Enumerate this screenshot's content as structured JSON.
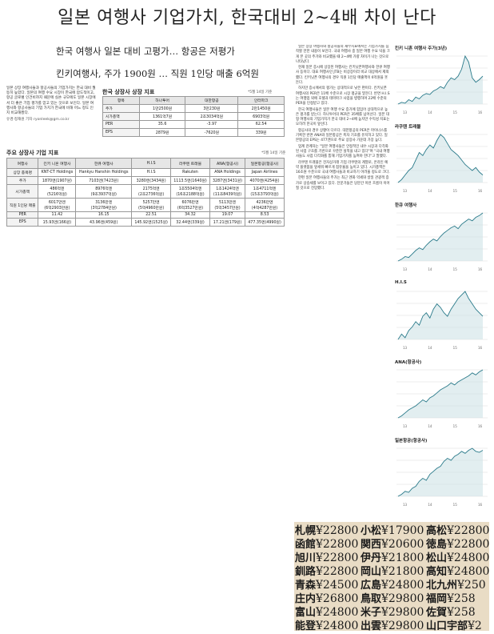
{
  "headline": "일본 여행사 기업가치, 한국대비 2~4배 차이 난다",
  "subheads": [
    "한국 여행사 일본 대비 고평가… 항공은 저평가",
    "킨키여행사, 주가 1900원 … 직원 1인당 매출 6억원"
  ],
  "intro": {
    "text": "일본 상장 여행사들과 항공사들의 기업가치는 한국 대비 월등히 높았다. 일본의 여행 수요 시장이 한국에 압도적이고, 항공 글로벌 인건비까지 때문에 실손 규모에도 일본 시장에서 더 좋은 기업 평가를 얻고 있는 것으로 보인다. 일본 여행사와 항공사들의 기업 가치가 한국에 비해 어느 정도 인지 비교해봤다.",
    "byline": "유경·정재원 기자 ryonleek@gm.co.kr"
  },
  "table1": {
    "title": "한국 상장사 상장 지표",
    "note": "*5월 14일 기준",
    "headers": [
      "항목",
      "하나투어",
      "대한항공",
      "인터파크"
    ],
    "rows": [
      [
        "주가",
        "1만2500원",
        "3만230원",
        "2만1450원"
      ],
      [
        "시가총액",
        "1361억7원",
        "2조3034억원",
        "6903억원"
      ],
      [
        "PER",
        "35.6",
        "-3.97",
        "62.54"
      ],
      [
        "EPS",
        "2879원",
        "-7620원",
        "339원"
      ]
    ]
  },
  "table2": {
    "title": "주요 상장사 기업 지표",
    "note": "*5월 14일 기준",
    "headers": [
      "여행사",
      "킨키 니혼 여행사",
      "한큐 여행사",
      "H.I.S",
      "라쿠텐 트래블",
      "ANA(항공사)",
      "일본항공(항공사)"
    ],
    "rows": [
      {
        "label": "상장 종목명",
        "cells": [
          "KNT-CT Holdings",
          "Hankyu Hanshin Holdings",
          "H.I.S",
          "Rakuten",
          "ANA Holdings",
          "Japan Airlines"
        ]
      },
      {
        "label": "주가",
        "cells": [
          "1870엔(1907원)",
          "7103엔(7423원)",
          "3280엔(3434원)",
          "1113.5엔(1640원)",
          "3287엔(3431원)",
          "4070엔(4254원)"
        ]
      },
      {
        "label": "시가총액",
        "cells": [
          "486억엔\n(5216억원)",
          "8976억엔\n(9조3937억원)",
          "2175억엔\n(2조2736억원)",
          "1조5504억엔\n(16조2188억원)",
          "1조1424억엔\n(11조8439억원)",
          "1조4711억엔\n(15조3793억원)"
        ]
      },
      {
        "label": "직원 1인당 매출",
        "cells": [
          "6017만엔\n(6억2903만원)",
          "3136만엔\n(3억2784만원)",
          "5257만엔\n(5억4960만원)",
          "6076만엔\n(6억3527만원)",
          "5113만엔\n(5억3457만원)",
          "4236만엔\n(4억4287만원)"
        ]
      },
      {
        "label": "PER",
        "cells": [
          "11.42",
          "16.15",
          "22.51",
          "34.32",
          "19.07",
          "8.53"
        ]
      },
      {
        "label": "EPS",
        "cells": [
          "15.93엔(166원)",
          "43.96엔(459원)",
          "145.92엔(1525원)",
          "32.44엔(339원)",
          "17.21엔(179원)",
          "477.35엔(4990원)"
        ]
      }
    ]
  },
  "article": [
    "일본 상장 여행사와 항공사들의 재무지표에서는 기업가치를 짐작할 만한 내용이 보인다. 국내 여행사 중 일본 여행 수요 덕을 크게 본 곳의 주가와 비교했을 때 2~4배 가량 차이가 나는 것으로 나타났다.",
    "현재 일본 증시에 상장된 여행사는 킨키닛폰여행사와 한큐 여행사 등이다. 대표 여행사인 JTB는 비상장이라 비교 대상에서 제외했다. 킨키닛폰 여행사의 경우 직원 1인당 매출액이 6억원을 웃돈다.",
    "하지만 증시에서의 평가는 상대적으로 낮은 편이다. 킨키닛폰 여행사의 PER은 11배 수준으로 시장 평균을 밑돈다. 반면 H.I.S는 여행업 외에 호텔과 테마파크 사업을 병행하며 22배 수준의 PER을 인정받고 있다.",
    "한국 여행사들은 일본 여행 수요 증가에 힘입어 상대적으로 높은 평가를 받는다. 하나투어의 PER은 35배를 넘어선다. 일본 대형 여행사의 기업가치가 한국 대비 2~4배 높지만 수익성 지표는 오히려 한국이 앞선다.",
    "항공사의 경우 상황이 다르다. 대한항공의 PER은 마이너스를 기록한 반면 ANA와 일본항공은 흑자 기조를 유지하고 있다. 일본항공의 EPS는 477엔으로 주요 상장사 가운데 가장 높다.",
    "업계 관계자는 \"일본 여행사들은 안정적인 내수 시장과 다각화된 사업 구조를 기반으로 꾸준한 실적을 내고 있다\"며 \"국내 여행사들도 사업 다각화를 통해 기업가치를 높여야 한다\"고 말했다.",
    "라쿠텐 트래블은 전자상거래 기업 라쿠텐의 계열로, 온라인 예약 플랫폼을 앞세워 빠르게 점유율을 높이고 있다. 시가총액은 16조원 수준으로 국내 여행사들과 비교하기 어려울 정도로 크다.",
    "한편 일본 여행사들의 주가는 최근 엔화 약세와 방일 관광객 증가로 상승세를 보이고 있다. 전문가들은 당분간 이런 흐름이 이어질 것으로 전망했다."
  ],
  "charts": [
    {
      "title": "킨키 니혼 여행사 주가(3년)",
      "values": [
        30,
        32,
        31,
        35,
        33,
        38,
        36,
        40,
        42,
        41,
        45,
        47,
        50,
        48,
        55,
        60,
        58,
        62,
        70,
        85,
        78,
        60,
        55,
        58,
        62
      ]
    },
    {
      "title": "라쿠텐 트래블",
      "values": [
        40,
        42,
        45,
        48,
        50,
        55,
        60,
        58,
        62,
        65,
        63,
        68,
        72,
        70,
        66,
        62,
        60,
        58,
        55,
        52,
        50,
        48,
        50,
        47,
        45
      ]
    },
    {
      "title": "한큐 여행사",
      "values": [
        20,
        22,
        25,
        24,
        28,
        32,
        35,
        33,
        38,
        42,
        45,
        43,
        48,
        52,
        55,
        58,
        60,
        57,
        62,
        65,
        68,
        66,
        70,
        72,
        75
      ]
    },
    {
      "title": "H.I.S",
      "values": [
        45,
        48,
        46,
        50,
        52,
        55,
        53,
        58,
        60,
        57,
        62,
        65,
        63,
        60,
        58,
        62,
        65,
        68,
        70,
        72,
        68,
        65,
        62,
        60,
        58
      ]
    },
    {
      "title": "ANA(항공사)",
      "values": [
        30,
        32,
        35,
        38,
        40,
        42,
        45,
        48,
        46,
        50,
        52,
        55,
        58,
        60,
        62,
        65,
        63,
        66,
        68,
        70,
        72,
        75,
        73,
        76,
        78
      ]
    },
    {
      "title": "일본항공(항공사)",
      "values": [
        20,
        22,
        25,
        24,
        28,
        30,
        35,
        38,
        36,
        42,
        45,
        48,
        50,
        55,
        58,
        56,
        60,
        62,
        65,
        63,
        66,
        68,
        65,
        64,
        66
      ]
    }
  ],
  "chart_axis_labels": [
    "13",
    "14",
    "15",
    "16"
  ],
  "chart_colors": {
    "line": "#2a7a8a",
    "fill": "#cfe3e6",
    "grid": "#dddddd"
  },
  "photo": {
    "cells": [
      {
        "city": "札幌",
        "price": "¥22800"
      },
      {
        "city": "函館",
        "price": "¥22800"
      },
      {
        "city": "旭川",
        "price": "¥22800"
      },
      {
        "city": "釧路",
        "price": "¥22800"
      },
      {
        "city": "青森",
        "price": "¥24500"
      },
      {
        "city": "庄内",
        "price": "¥26800"
      },
      {
        "city": "富山",
        "price": "¥24800"
      },
      {
        "city": "能登",
        "price": "¥24800"
      },
      {
        "city": "小松",
        "price": "¥17900"
      },
      {
        "city": "関西",
        "price": "¥20600"
      },
      {
        "city": "伊丹",
        "price": "¥21800"
      },
      {
        "city": "岡山",
        "price": "¥21800"
      },
      {
        "city": "広島",
        "price": "¥24800"
      },
      {
        "city": "鳥取",
        "price": "¥29800"
      },
      {
        "city": "米子",
        "price": "¥29800"
      },
      {
        "city": "出雲",
        "price": "¥29800"
      },
      {
        "city": "高松",
        "price": "¥22800"
      },
      {
        "city": "徳島",
        "price": "¥22800"
      },
      {
        "city": "松山",
        "price": "¥24800"
      },
      {
        "city": "高知",
        "price": "¥24800"
      },
      {
        "city": "北九州",
        "price": "¥250"
      },
      {
        "city": "福岡",
        "price": "¥258"
      },
      {
        "city": "佐賀",
        "price": "¥258"
      },
      {
        "city": "山口宇部",
        "price": "¥2"
      }
    ]
  }
}
